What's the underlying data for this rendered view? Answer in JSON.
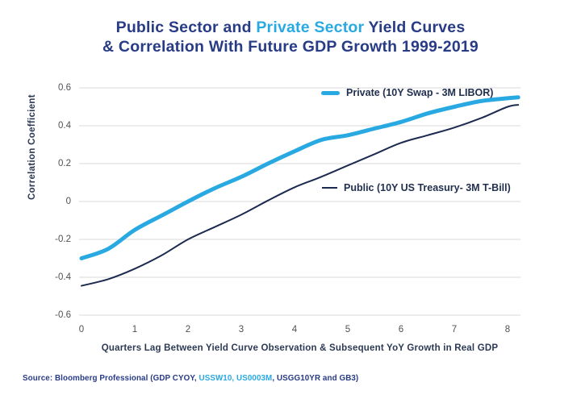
{
  "title": {
    "line1_part1": "Public Sector and ",
    "line1_highlight": "Private Sector",
    "line1_part3": " Yield Curves",
    "line2": "& Correlation With Future GDP Growth 1999-2019"
  },
  "colors": {
    "title_navy": "#283B85",
    "accent_cyan": "#29A9E1",
    "public_line_navy": "#1B2A4E",
    "gridline_gray": "#D9D9D9",
    "tick_text_gray": "#4D5156"
  },
  "chart_data": {
    "type": "line",
    "title": "Public Sector and Private Sector Yield Curves & Correlation With Future GDP Growth 1999-2019",
    "xlabel": "Quarters Lag Between Yield Curve Observation & Subsequent YoY Growth in Real GDP",
    "ylabel": "Correlation Coefficient",
    "xlim": [
      0,
      8.2
    ],
    "ylim": [
      -0.6,
      0.6
    ],
    "x_ticks": [
      "0",
      "1",
      "2",
      "3",
      "4",
      "5",
      "6",
      "7",
      "8"
    ],
    "y_ticks": [
      "0.6",
      "0.4",
      "0.2",
      "0",
      "-0.2",
      "-0.4",
      "-0.6"
    ],
    "grid": true,
    "legend_position": "inside-right",
    "series": [
      {
        "name": "Private (10Y Swap - 3M LIBOR)",
        "color": "#29A9E1",
        "stroke_width": 5,
        "x": [
          0,
          0.5,
          1,
          1.5,
          2,
          2.5,
          3,
          3.5,
          4,
          4.5,
          5,
          5.5,
          6,
          6.5,
          7,
          7.5,
          8,
          8.2
        ],
        "y": [
          -0.3,
          -0.25,
          -0.15,
          -0.075,
          0.0,
          0.07,
          0.13,
          0.2,
          0.265,
          0.325,
          0.35,
          0.385,
          0.42,
          0.465,
          0.5,
          0.53,
          0.545,
          0.55
        ]
      },
      {
        "name": "Public (10Y US Treasury- 3M T-Bill)",
        "color": "#1B2A4E",
        "stroke_width": 2,
        "x": [
          0,
          0.5,
          1,
          1.5,
          2,
          2.5,
          3,
          3.5,
          4,
          4.5,
          5,
          5.5,
          6,
          6.5,
          7,
          7.5,
          8,
          8.2
        ],
        "y": [
          -0.445,
          -0.41,
          -0.355,
          -0.285,
          -0.2,
          -0.135,
          -0.07,
          0.005,
          0.075,
          0.13,
          0.19,
          0.25,
          0.31,
          0.35,
          0.39,
          0.44,
          0.5,
          0.51
        ]
      }
    ]
  },
  "source": {
    "part1": "Source: Bloomberg Professional (GDP CYOY, ",
    "highlight": "USSW10, US0003M",
    "part2": ", USGG10YR and GB3)"
  }
}
